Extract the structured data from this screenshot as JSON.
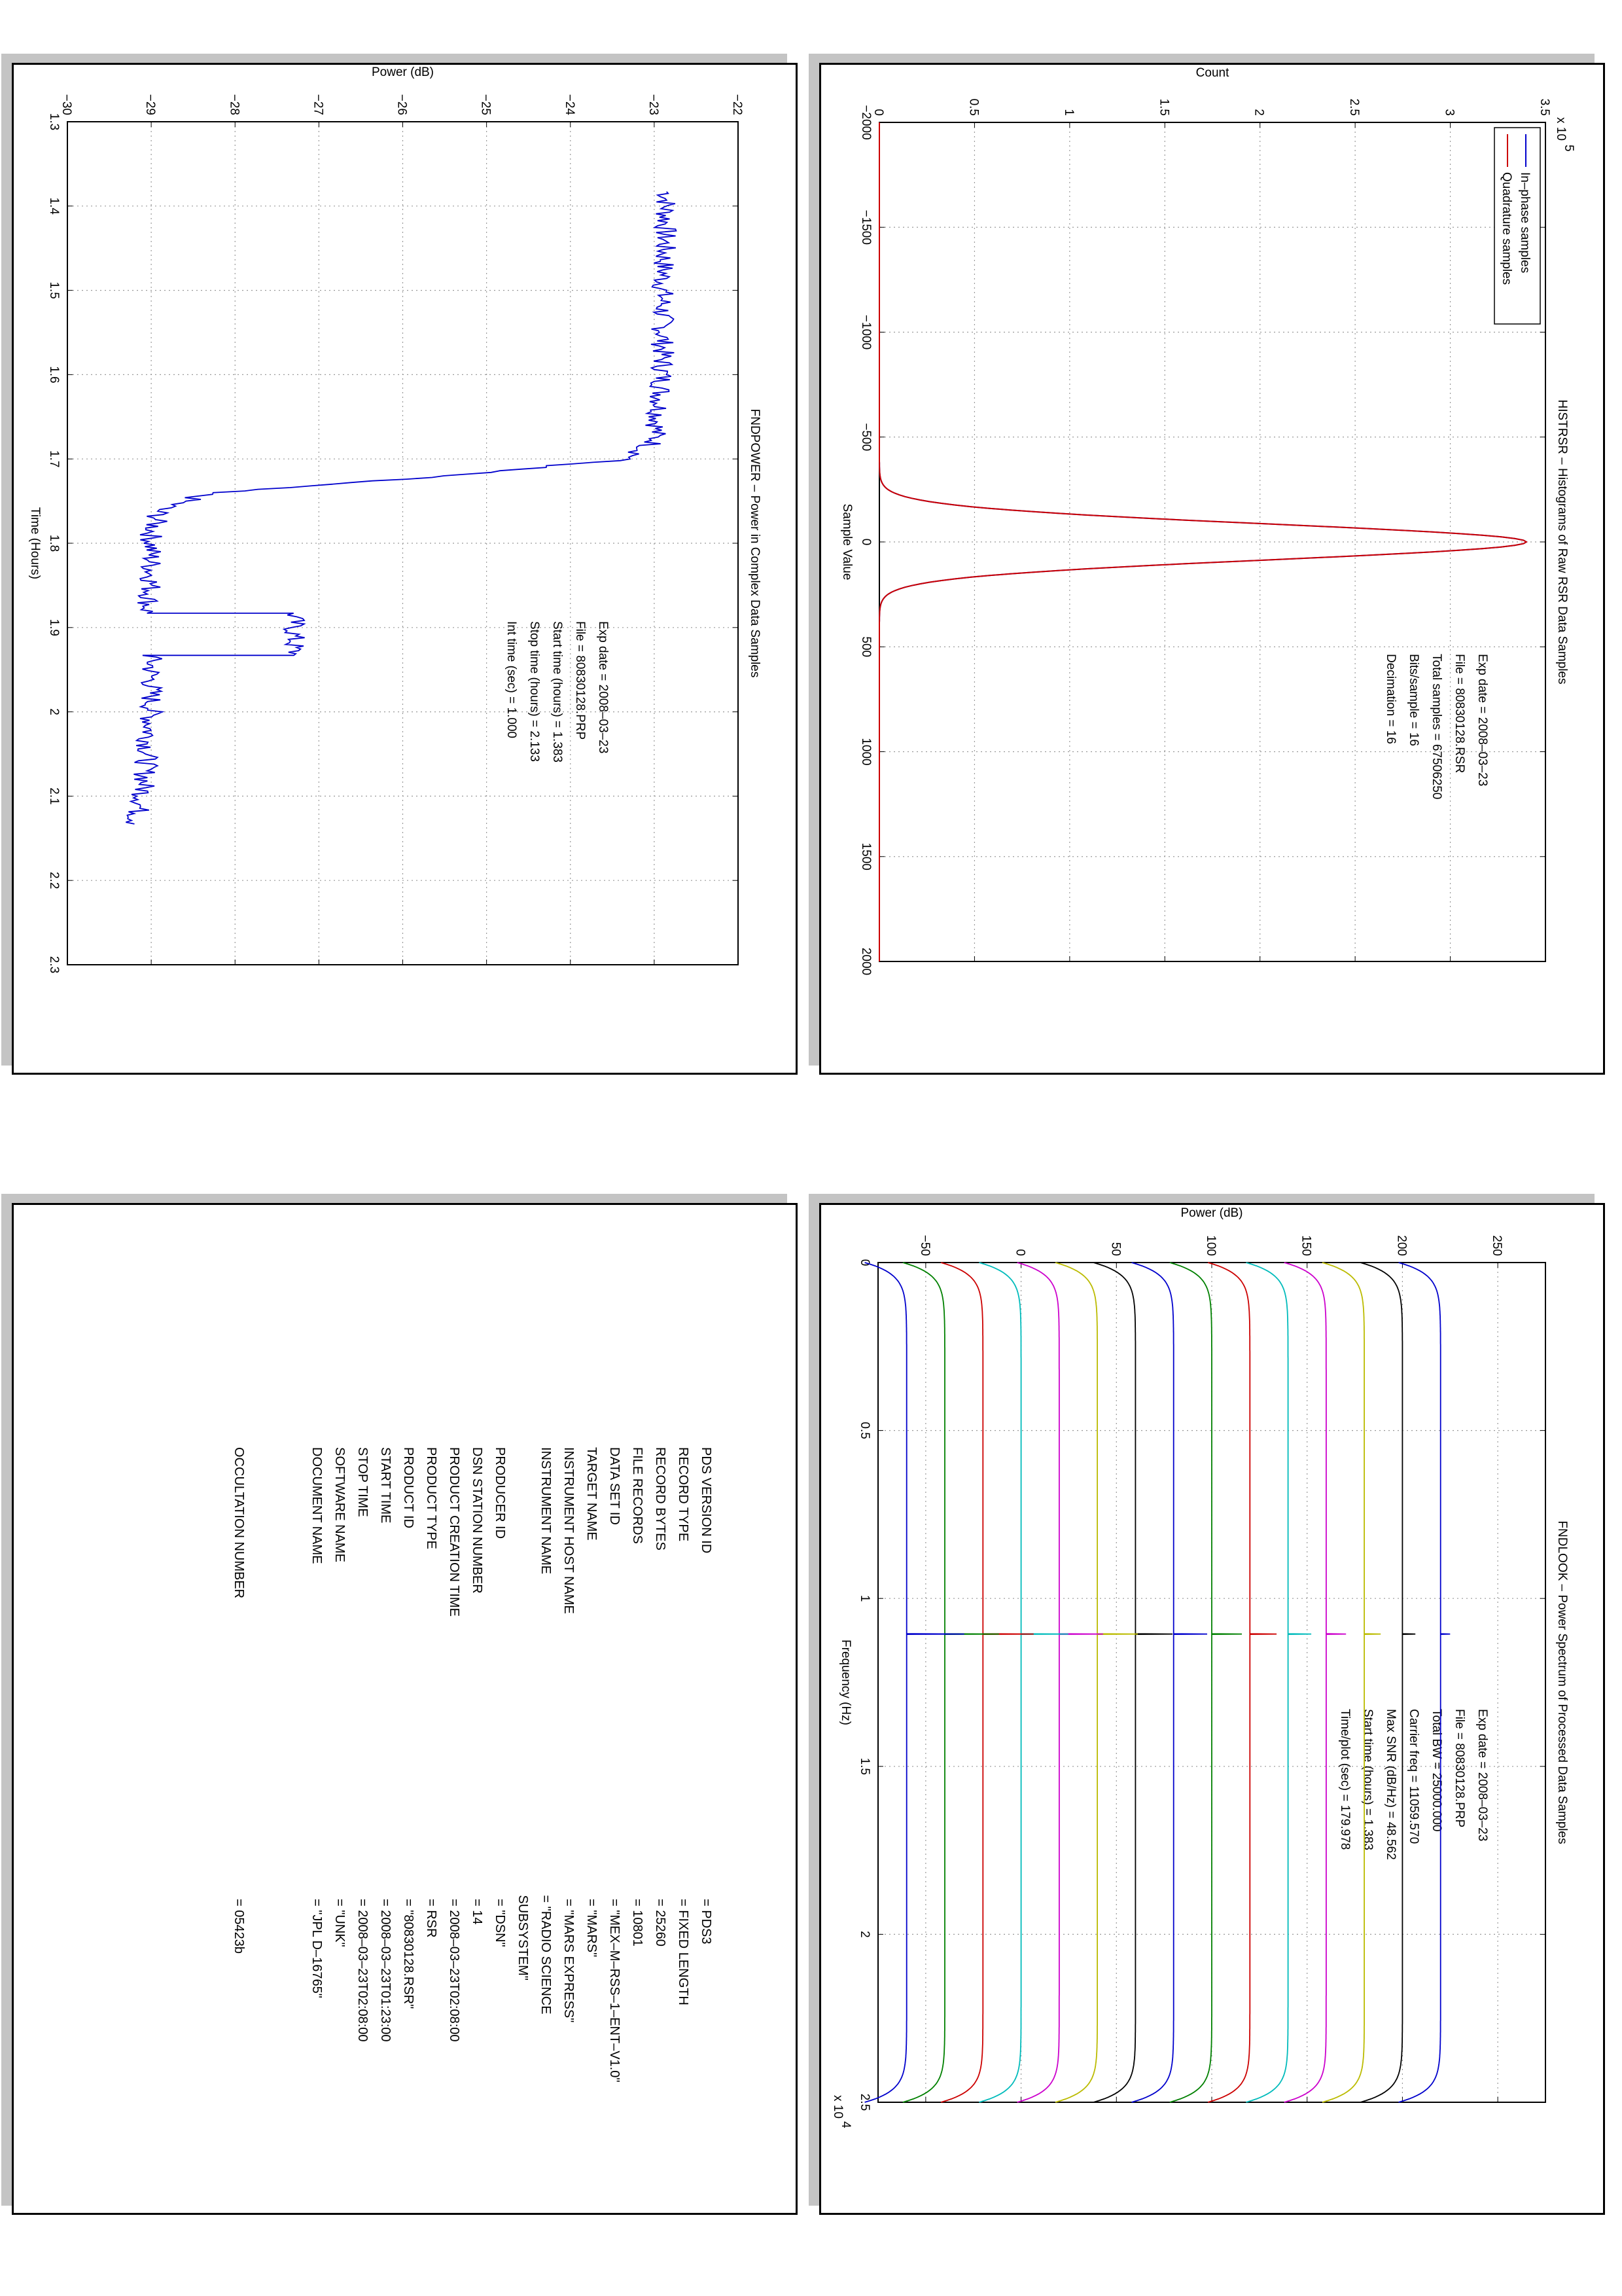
{
  "chart_data": [
    {
      "type": "line",
      "title": "FNDPOWER – Power in Complex Data Samples",
      "xlabel": "Time (Hours)",
      "ylabel": "Power (dB)",
      "xlim": [
        1.3,
        2.3
      ],
      "ylim": [
        -30,
        -22
      ],
      "xticks": [
        "1.3",
        "1.4",
        "1.5",
        "1.6",
        "1.7",
        "1.8",
        "1.9",
        "2",
        "2.1",
        "2.2",
        "2.3"
      ],
      "yticks": [
        "−30",
        "−29",
        "−28",
        "−27",
        "−26",
        "−25",
        "−24",
        "−23",
        "−22"
      ],
      "grid": true,
      "annotations": [
        "Exp date = 2008–03–23",
        "File = 80830128.PRP",
        "Start time (hours) =  1.383",
        "Stop time (hours) =  2.133",
        "Int time (sec) =   1.000"
      ],
      "series": [
        {
          "color": "#0000cc",
          "x": [
            1.383,
            1.5,
            1.6,
            1.65,
            1.68,
            1.7,
            1.72,
            1.74,
            1.76,
            1.79,
            1.85,
            1.883,
            1.883,
            1.9,
            1.92,
            1.933,
            1.933,
            2.0,
            2.1,
            2.133
          ],
          "y": [
            -22.85,
            -22.9,
            -22.9,
            -22.95,
            -23.0,
            -23.3,
            -25.5,
            -28.3,
            -28.9,
            -29.0,
            -29.0,
            -29.05,
            -27.3,
            -27.3,
            -27.3,
            -27.3,
            -29.0,
            -29.0,
            -29.1,
            -29.2
          ]
        }
      ]
    },
    {
      "type": "line",
      "title": "HISTRSR – Histograms of Raw RSR Data Samples",
      "xlabel": "Sample Value",
      "ylabel": "Count",
      "yscale_label": "x 10",
      "yscale_exp": "5",
      "xlim": [
        -2000,
        2000
      ],
      "ylim": [
        0,
        3.5
      ],
      "xticks": [
        "−2000",
        "−1500",
        "−1000",
        "−500",
        "0",
        "500",
        "1000",
        "1500",
        "2000"
      ],
      "yticks": [
        "0",
        "0.5",
        "1",
        "1.5",
        "2",
        "2.5",
        "3",
        "3.5"
      ],
      "grid": true,
      "legend_position": "top-left",
      "annotations": [
        "Exp date = 2008–03–23",
        "File = 80830128.RSR",
        "Total samples =  67506250",
        "Bits/sample   =    16",
        "Decimation   =    16"
      ],
      "series": [
        {
          "name": "In–phase samples",
          "color": "#0000cc",
          "peak": 3.4,
          "sigma": 85
        },
        {
          "name": "Quadrature samples",
          "color": "#cc0000",
          "peak": 3.4,
          "sigma": 85
        }
      ]
    },
    {
      "type": "line",
      "title": "FNDLOOK – Power Spectrum of Processed Data Samples",
      "xlabel": "Frequency (Hz)",
      "ylabel": "Power (dB)",
      "xscale_label": "x 10",
      "xscale_exp": "4",
      "xlim": [
        0,
        2.5
      ],
      "ylim": [
        -75,
        275
      ],
      "xticks": [
        "0",
        "0.5",
        "1",
        "1.5",
        "2",
        "2.5"
      ],
      "yticks": [
        "−50",
        "0",
        "50",
        "100",
        "150",
        "200",
        "250"
      ],
      "grid": true,
      "annotations": [
        "Exp date = 2008–03–23",
        "File = 80830128.PRP",
        "Total BW =      25000.000",
        "Carrier freq =   11059.570",
        "Max SNR (dB/Hz) =    48.562",
        "Start time (hours) =   1.383",
        "Time/plot (sec) =    179.978"
      ],
      "series": [
        {
          "color": "#0000cc",
          "offset": 220
        },
        {
          "color": "#000000",
          "offset": 200
        },
        {
          "color": "#bbbb00",
          "offset": 180
        },
        {
          "color": "#cc00cc",
          "offset": 160
        },
        {
          "color": "#00bbbb",
          "offset": 140
        },
        {
          "color": "#cc0000",
          "offset": 120
        },
        {
          "color": "#008000",
          "offset": 100
        },
        {
          "color": "#0000cc",
          "offset": 80
        },
        {
          "color": "#000000",
          "offset": 60
        },
        {
          "color": "#bbbb00",
          "offset": 40
        },
        {
          "color": "#cc00cc",
          "offset": 20
        },
        {
          "color": "#00bbbb",
          "offset": 0
        },
        {
          "color": "#cc0000",
          "offset": -20
        },
        {
          "color": "#008000",
          "offset": -40
        },
        {
          "color": "#0000cc",
          "offset": -60
        }
      ]
    }
  ],
  "label_table": [
    {
      "key": "PDS VERSION ID",
      "value": "= PDS3"
    },
    {
      "key": "RECORD TYPE",
      "value": "= FIXED LENGTH"
    },
    {
      "key": "RECORD BYTES",
      "value": "= 25260"
    },
    {
      "key": "FILE RECORDS",
      "value": "= 10801"
    },
    {
      "key": "DATA SET ID",
      "value": "= \"MEX–M–RSS–1–ENT–V1.0\""
    },
    {
      "key": "TARGET NAME",
      "value": "= \"MARS\""
    },
    {
      "key": "INSTRUMENT HOST NAME",
      "value": "= \"MARS EXPRESS\""
    },
    {
      "key": "INSTRUMENT NAME",
      "value": "= \"RADIO SCIENCE SUBSYSTEM\""
    },
    {
      "key": "PRODUCER ID",
      "value": "= \"DSN\""
    },
    {
      "key": "DSN STATION NUMBER",
      "value": "= 14"
    },
    {
      "key": "PRODUCT CREATION TIME",
      "value": "= 2008–03–23T02:08:00"
    },
    {
      "key": "PRODUCT TYPE",
      "value": "= RSR"
    },
    {
      "key": "PRODUCT ID",
      "value": "= \"80830128.RSR\""
    },
    {
      "key": "START TIME",
      "value": "= 2008–03–23T01:23:00"
    },
    {
      "key": "STOP TIME",
      "value": "= 2008–03–23T02:08:00"
    },
    {
      "key": "SOFTWARE NAME",
      "value": "= \"UNK\""
    },
    {
      "key": "DOCUMENT NAME",
      "value": "= \"JPL D–16765\""
    },
    {
      "key": "OCCULTATION NUMBER",
      "value": "= 05423b",
      "gap": true
    }
  ]
}
